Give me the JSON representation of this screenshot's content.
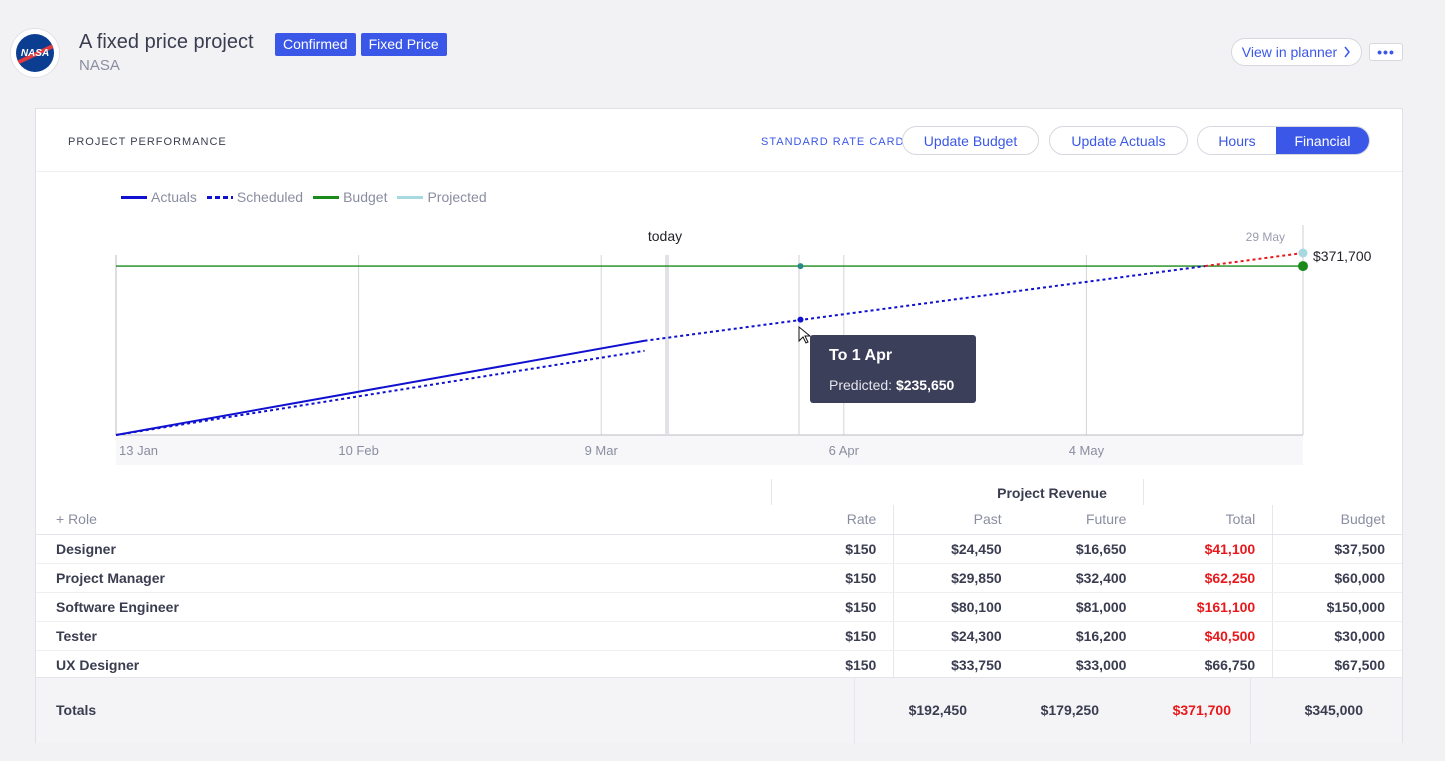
{
  "header": {
    "logo_text": "NASA",
    "title": "A fixed price project",
    "client": "NASA",
    "badges": [
      "Confirmed",
      "Fixed Price"
    ],
    "view_planner": "View in planner",
    "more": "•••"
  },
  "panel": {
    "title": "PROJECT PERFORMANCE",
    "rate_card": "STANDARD RATE CARD",
    "update_budget": "Update Budget",
    "update_actuals": "Update Actuals",
    "toggle": {
      "hours": "Hours",
      "financial": "Financial",
      "active": "Financial"
    }
  },
  "chart_data": {
    "type": "line",
    "legend": [
      "Actuals",
      "Scheduled",
      "Budget",
      "Projected"
    ],
    "colors": {
      "actuals": "#1010d0",
      "scheduled": "#1010d0",
      "budget": "#1a8a1a",
      "projected": "#a8d8e0",
      "overrun": "#e8191c"
    },
    "x_ticks": [
      "13 Jan",
      "10 Feb",
      "9 Mar",
      "6 Apr",
      "4 May"
    ],
    "today_label": "today",
    "end_label": "29 May",
    "end_value_label": "$371,700",
    "budget": 345000,
    "actuals": [
      {
        "x": "13 Jan",
        "y": 0
      },
      {
        "x": "14 Mar",
        "y": 192450
      }
    ],
    "scheduled": [
      {
        "x": "13 Jan",
        "y": 0
      },
      {
        "x": "14 Mar",
        "y": 172000
      }
    ],
    "projected": [
      {
        "x": "14 Mar",
        "y": 192450
      },
      {
        "x": "1 Apr",
        "y": 235650
      },
      {
        "x": "29 May",
        "y": 371700
      }
    ],
    "tooltip": {
      "title": "To 1 Apr",
      "label": "Predicted:",
      "value": "$235,650"
    }
  },
  "table": {
    "add_role": "+ Role",
    "group_header": "Project Revenue",
    "columns": [
      "Rate",
      "Past",
      "Future",
      "Total",
      "Budget"
    ],
    "rows": [
      {
        "role": "Designer",
        "rate": "$150",
        "past": "$24,450",
        "future": "$16,650",
        "total": "$41,100",
        "budget": "$37,500",
        "over": true
      },
      {
        "role": "Project Manager",
        "rate": "$150",
        "past": "$29,850",
        "future": "$32,400",
        "total": "$62,250",
        "budget": "$60,000",
        "over": true
      },
      {
        "role": "Software Engineer",
        "rate": "$150",
        "past": "$80,100",
        "future": "$81,000",
        "total": "$161,100",
        "budget": "$150,000",
        "over": true
      },
      {
        "role": "Tester",
        "rate": "$150",
        "past": "$24,300",
        "future": "$16,200",
        "total": "$40,500",
        "budget": "$30,000",
        "over": true
      },
      {
        "role": "UX Designer",
        "rate": "$150",
        "past": "$33,750",
        "future": "$33,000",
        "total": "$66,750",
        "budget": "$67,500",
        "over": false
      }
    ],
    "totals": {
      "label": "Totals",
      "past": "$192,450",
      "future": "$179,250",
      "total": "$371,700",
      "budget": "$345,000"
    }
  }
}
